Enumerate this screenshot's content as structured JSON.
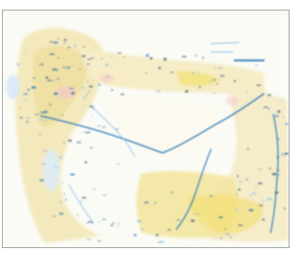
{
  "map": {
    "colors": {
      "land_warm": "#f4e9bd",
      "land_yellow": "#f3e27a",
      "land_pale": "#f7f1dc",
      "sea": "#ffffff",
      "water_blue": "#2f79b8",
      "light_blue": "#8fc3e4",
      "detail_dark": "#355f7d",
      "pink": "#f2c9c9",
      "frame": "#8a8a8a"
    },
    "legend_icons": [
      "line-sample-icon",
      "line-sample-icon",
      "line-sample-icon"
    ]
  }
}
